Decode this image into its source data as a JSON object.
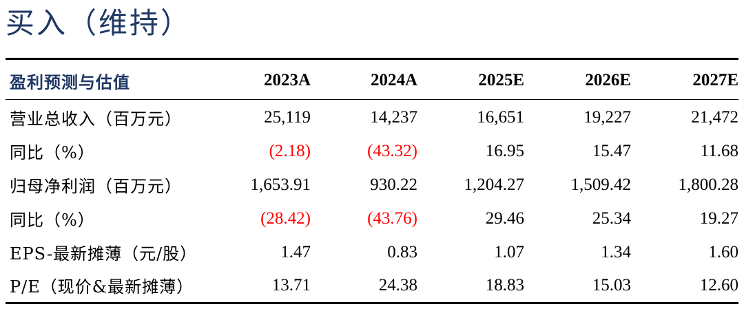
{
  "rating": "买入（维持）",
  "table": {
    "header": {
      "label": "盈利预测与估值",
      "years": [
        "2023A",
        "2024A",
        "2025E",
        "2026E",
        "2027E"
      ]
    },
    "rows": [
      {
        "label": "营业总收入（百万元）",
        "values": [
          "25,119",
          "14,237",
          "16,651",
          "19,227",
          "21,472"
        ]
      },
      {
        "label": "同比（%）",
        "values": [
          "(2.18)",
          "(43.32)",
          "16.95",
          "15.47",
          "11.68"
        ]
      },
      {
        "label": "归母净利润（百万元）",
        "values": [
          "1,653.91",
          "930.22",
          "1,204.27",
          "1,509.42",
          "1,800.28"
        ]
      },
      {
        "label": "同比（%）",
        "values": [
          "(28.42)",
          "(43.76)",
          "29.46",
          "25.34",
          "19.27"
        ]
      },
      {
        "label": "EPS-最新摊薄（元/股）",
        "values": [
          "1.47",
          "0.83",
          "1.07",
          "1.34",
          "1.60"
        ]
      },
      {
        "label": "P/E（现价&最新摊薄）",
        "values": [
          "13.71",
          "24.38",
          "18.83",
          "15.03",
          "12.60"
        ]
      }
    ]
  }
}
